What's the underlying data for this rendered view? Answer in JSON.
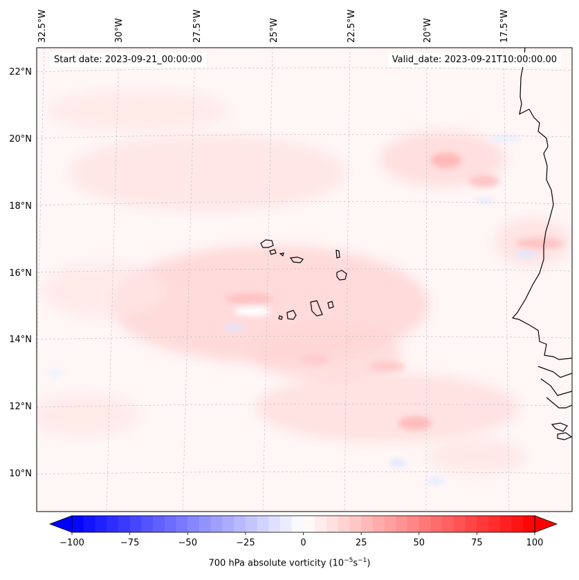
{
  "map": {
    "start_date_text": "Start date: 2023-09-21_00:00:00",
    "valid_date_text": "Valid_date: 2023-09-21T10:00:00.00",
    "extent": {
      "lon_min": -32.8,
      "lon_max": -15.4,
      "lat_min": 8.9,
      "lat_max": 22.8
    },
    "longitude_labels": [
      "32.5°W",
      "30°W",
      "27.5°W",
      "25°W",
      "22.5°W",
      "20°W",
      "17.5°W"
    ],
    "latitude_labels": [
      "22°N",
      "20°N",
      "18°N",
      "16°N",
      "14°N",
      "12°N",
      "10°N"
    ],
    "gridlines": true,
    "coastline_color": "#000000",
    "field_colormap": "bwr",
    "colors": {
      "negative": "#0000ff",
      "zero": "#ffffff",
      "positive": "#ff0000"
    }
  },
  "colorbar": {
    "label": "700 hPa absolute vorticity",
    "units_base": "10",
    "units_exp1": "−5",
    "units_s": "s",
    "units_exp2": "−1",
    "min": -100,
    "max": 100,
    "step": 5,
    "extend": "both",
    "ticks": [
      "−100",
      "−75",
      "−50",
      "−25",
      "0",
      "25",
      "50",
      "75",
      "100"
    ]
  }
}
